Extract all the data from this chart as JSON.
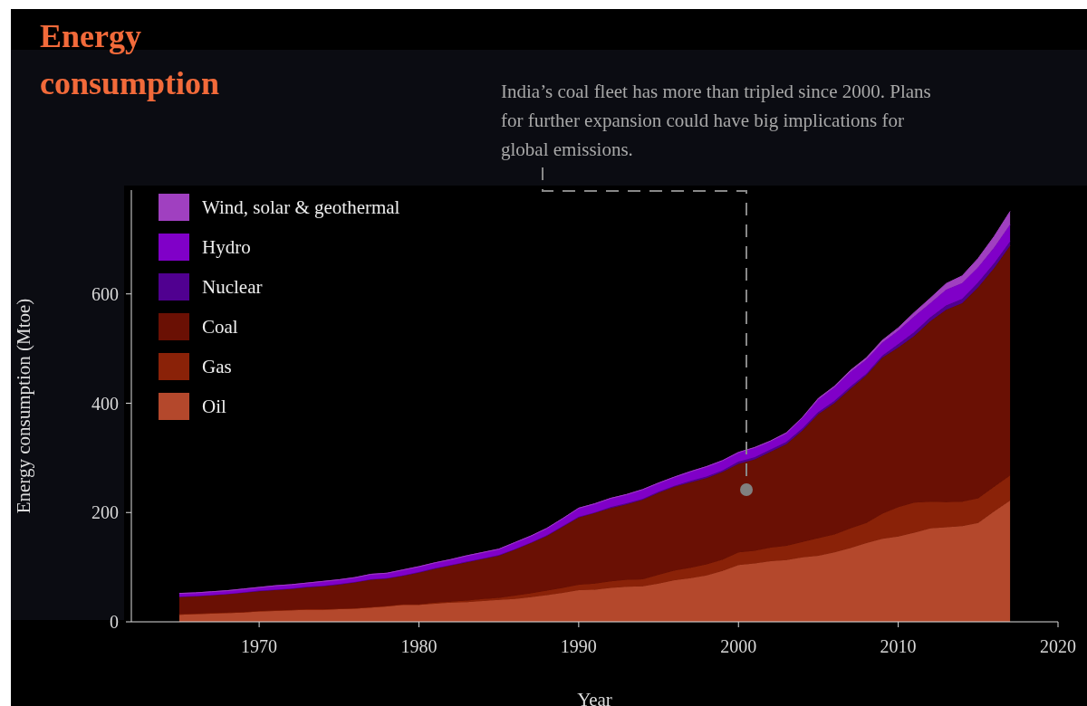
{
  "chart_data": {
    "type": "area",
    "title": "Energy consumption",
    "xlabel": "Year",
    "ylabel": "Energy consumption (Mtoe)",
    "x": [
      1965,
      1966,
      1967,
      1968,
      1969,
      1970,
      1971,
      1972,
      1973,
      1974,
      1975,
      1976,
      1977,
      1978,
      1979,
      1980,
      1981,
      1982,
      1983,
      1984,
      1985,
      1986,
      1987,
      1988,
      1989,
      1990,
      1991,
      1992,
      1993,
      1994,
      1995,
      1996,
      1997,
      1998,
      1999,
      2000,
      2001,
      2002,
      2003,
      2004,
      2005,
      2006,
      2007,
      2008,
      2009,
      2010,
      2011,
      2012,
      2013,
      2014,
      2015,
      2016,
      2017
    ],
    "stacked": true,
    "series": [
      {
        "name": "Oil",
        "color": "#b4482c",
        "values": [
          13,
          14,
          15,
          16,
          17,
          19,
          20,
          21,
          22,
          22,
          23,
          24,
          26,
          28,
          31,
          31,
          33,
          35,
          36,
          38,
          40,
          42,
          45,
          49,
          53,
          58,
          59,
          62,
          64,
          65,
          70,
          76,
          80,
          85,
          93,
          104,
          107,
          111,
          113,
          118,
          121,
          127,
          135,
          144,
          152,
          156,
          163,
          171,
          173,
          175,
          181,
          202,
          222
        ]
      },
      {
        "name": "Gas",
        "color": "#8a2208",
        "values": [
          1,
          1,
          1,
          1,
          1,
          1,
          1,
          1,
          1,
          1,
          1,
          1,
          1,
          1,
          1,
          1,
          2,
          2,
          3,
          4,
          4,
          6,
          7,
          8,
          9,
          10,
          11,
          12,
          13,
          13,
          16,
          18,
          19,
          20,
          21,
          23,
          23,
          25,
          26,
          28,
          32,
          33,
          36,
          37,
          46,
          54,
          55,
          49,
          46,
          45,
          45,
          45,
          46
        ]
      },
      {
        "name": "Coal",
        "color": "#6a1004",
        "values": [
          32,
          32,
          33,
          34,
          35,
          36,
          37,
          38,
          40,
          42,
          44,
          47,
          50,
          50,
          52,
          58,
          62,
          66,
          70,
          73,
          77,
          84,
          92,
          100,
          112,
          123,
          129,
          134,
          138,
          145,
          150,
          153,
          156,
          158,
          160,
          162,
          167,
          175,
          186,
          204,
          227,
          240,
          255,
          270,
          285,
          292,
          305,
          330,
          352,
          363,
          386,
          400,
          420
        ]
      },
      {
        "name": "Nuclear",
        "color": "#500090",
        "values": [
          0,
          0,
          0,
          0,
          1,
          1,
          1,
          1,
          1,
          1,
          1,
          1,
          1,
          1,
          1,
          1,
          1,
          1,
          1,
          1,
          1,
          1,
          1,
          1,
          1,
          1,
          1,
          2,
          2,
          2,
          2,
          2,
          3,
          3,
          3,
          4,
          4,
          4,
          4,
          4,
          4,
          4,
          4,
          3,
          4,
          6,
          7,
          7,
          8,
          8,
          9,
          9,
          8
        ]
      },
      {
        "name": "Hydro",
        "color": "#8000c8",
        "values": [
          6,
          6,
          6,
          6,
          6,
          6,
          7,
          7,
          7,
          8,
          8,
          8,
          9,
          9,
          10,
          10,
          10,
          10,
          11,
          11,
          11,
          12,
          12,
          13,
          14,
          16,
          16,
          16,
          16,
          17,
          16,
          16,
          17,
          18,
          18,
          17,
          17,
          15,
          16,
          19,
          23,
          25,
          27,
          26,
          24,
          25,
          29,
          26,
          29,
          29,
          28,
          29,
          31
        ]
      },
      {
        "name": "Wind, solar & geothermal",
        "color": "#a040c0",
        "values": [
          0,
          0,
          0,
          0,
          0,
          0,
          0,
          0,
          0,
          0,
          0,
          0,
          0,
          0,
          0,
          0,
          0,
          0,
          0,
          0,
          0,
          0,
          0,
          0,
          0,
          0,
          0,
          0,
          0,
          0,
          0,
          0,
          0,
          0,
          0,
          0,
          1,
          1,
          1,
          1,
          2,
          2,
          3,
          3,
          4,
          5,
          7,
          9,
          11,
          13,
          16,
          20,
          24
        ]
      }
    ],
    "xlim": [
      1962,
      2020
    ],
    "xticks": [
      1970,
      1980,
      1990,
      2000,
      2010,
      2020
    ],
    "ylim": [
      0,
      790
    ],
    "yticks": [
      0,
      200,
      400,
      600
    ],
    "legend": "top left",
    "grid": false,
    "annotations": [
      "India’s coal fleet has more than tripled since 2000. Plans for further expansion could have big implications for global emissions."
    ]
  }
}
